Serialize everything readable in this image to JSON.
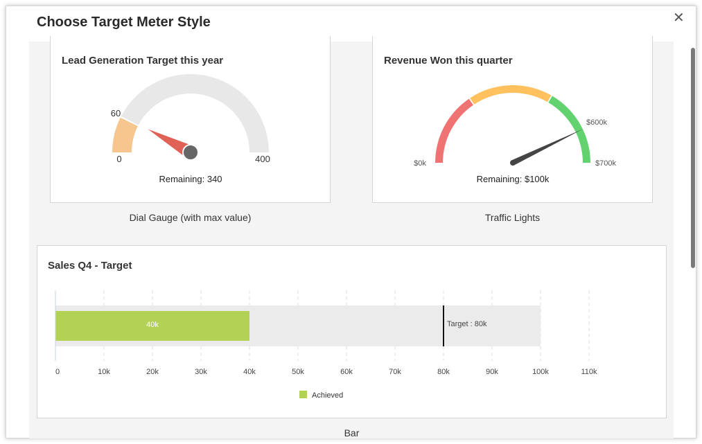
{
  "dialog": {
    "title": "Choose Target Meter Style",
    "close_icon": "close-icon"
  },
  "cards": [
    {
      "title": "Lead Generation Target this year",
      "caption": "Dial Gauge (with max value)",
      "min_label": "0",
      "max_label": "400",
      "achieved_label": "60",
      "remaining": "Remaining: 340",
      "colors": {
        "achieved": "#f7c68f",
        "track": "#e8e8e8",
        "needle": "#e06155",
        "hub": "#666666"
      }
    },
    {
      "title": "Revenue Won this quarter",
      "caption": "Traffic Lights",
      "min_label": "$0k",
      "max_label": "$700k",
      "value_label": "$600k",
      "remaining": "Remaining: $100k",
      "colors": {
        "red": "#f07373",
        "yellow": "#ffc05e",
        "green": "#62d26f",
        "needle": "#444444"
      }
    },
    {
      "title": "Sales Q4 - Target",
      "caption": "Bar"
    }
  ],
  "chart_data": [
    {
      "type": "gauge",
      "min": 0,
      "max": 400,
      "value": 60,
      "remaining": 340
    },
    {
      "type": "gauge",
      "min": 0,
      "max": 700,
      "value": 600,
      "remaining": 100,
      "unit": "$k",
      "bands": [
        {
          "color": "red",
          "from": 0,
          "to": 218
        },
        {
          "color": "yellow",
          "from": 218,
          "to": 467
        },
        {
          "color": "green",
          "from": 467,
          "to": 700
        }
      ]
    },
    {
      "type": "bar",
      "orientation": "horizontal",
      "achieved": 40,
      "achieved_label": "40k",
      "target": 80,
      "target_label": "Target : 80k",
      "max": 100,
      "xlim": [
        0,
        110
      ],
      "ticks": [
        "0",
        "10k",
        "20k",
        "30k",
        "40k",
        "50k",
        "60k",
        "70k",
        "80k",
        "90k",
        "100k",
        "110k"
      ],
      "legend": [
        {
          "name": "Achieved",
          "color": "#b3d155"
        }
      ],
      "legend_position": "bottom",
      "grid": true
    }
  ]
}
